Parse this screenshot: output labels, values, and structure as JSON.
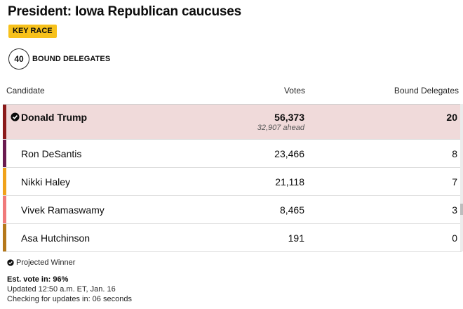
{
  "title": "President: Iowa Republican caucuses",
  "key_race_label": "KEY RACE",
  "bound_delegates": {
    "count": "40",
    "label": "BOUND DELEGATES"
  },
  "columns": {
    "candidate": "Candidate",
    "votes": "Votes",
    "bound": "Bound Delegates"
  },
  "candidates": [
    {
      "name": "Donald Trump",
      "votes": "56,373",
      "ahead": "32,907 ahead",
      "delegates": "20",
      "color": "#8b1a1a",
      "winner": true
    },
    {
      "name": "Ron DeSantis",
      "votes": "23,466",
      "delegates": "8",
      "color": "#6a1a4f"
    },
    {
      "name": "Nikki Haley",
      "votes": "21,118",
      "delegates": "7",
      "color": "#f0a21a"
    },
    {
      "name": "Vivek Ramaswamy",
      "votes": "8,465",
      "delegates": "3",
      "color": "#f07a7a"
    },
    {
      "name": "Asa Hutchinson",
      "votes": "191",
      "delegates": "0",
      "color": "#b5781a"
    }
  ],
  "footer": {
    "projected": "Projected Winner",
    "est_vote": "Est. vote in: 96%",
    "updated": "Updated 12:50 a.m. ET, Jan. 16",
    "checking": "Checking for updates in: 06 seconds"
  },
  "icons": {
    "check": "check-circle-icon"
  }
}
